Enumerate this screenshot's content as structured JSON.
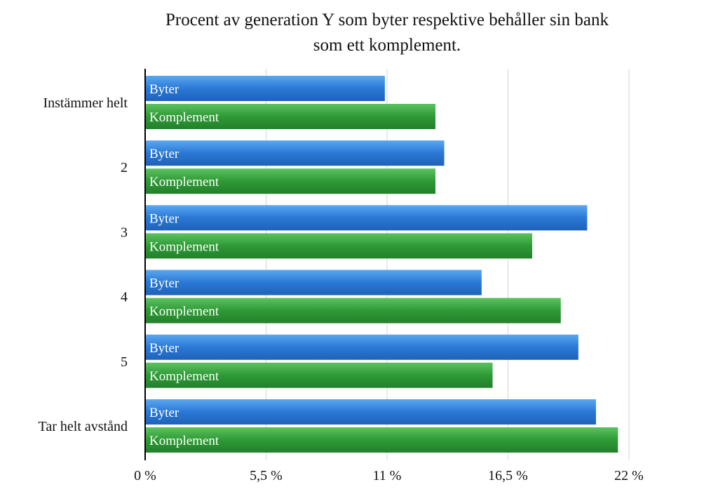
{
  "chart_data": {
    "type": "bar",
    "orientation": "horizontal",
    "title": [
      "Procent av generation Y som byter respektive behåller sin bank",
      "som ett komplement."
    ],
    "categories": [
      "Instämmer helt",
      "2",
      "3",
      "4",
      "5",
      "Tar helt avstånd"
    ],
    "series": [
      {
        "name": "Byter",
        "color": "#2a78d6",
        "values": [
          10.9,
          13.6,
          20.1,
          15.3,
          19.7,
          20.5
        ]
      },
      {
        "name": "Komplement",
        "color": "#2e9a35",
        "values": [
          13.2,
          13.2,
          17.6,
          18.9,
          15.8,
          21.5
        ]
      }
    ],
    "xlim": [
      0,
      22
    ],
    "xticks": [
      0,
      5.5,
      11,
      16.5,
      22
    ],
    "xtick_labels": [
      "0 %",
      "5,5 %",
      "11 %",
      "16,5 %",
      "22 %"
    ],
    "grid": "vertical",
    "legend": "none"
  }
}
